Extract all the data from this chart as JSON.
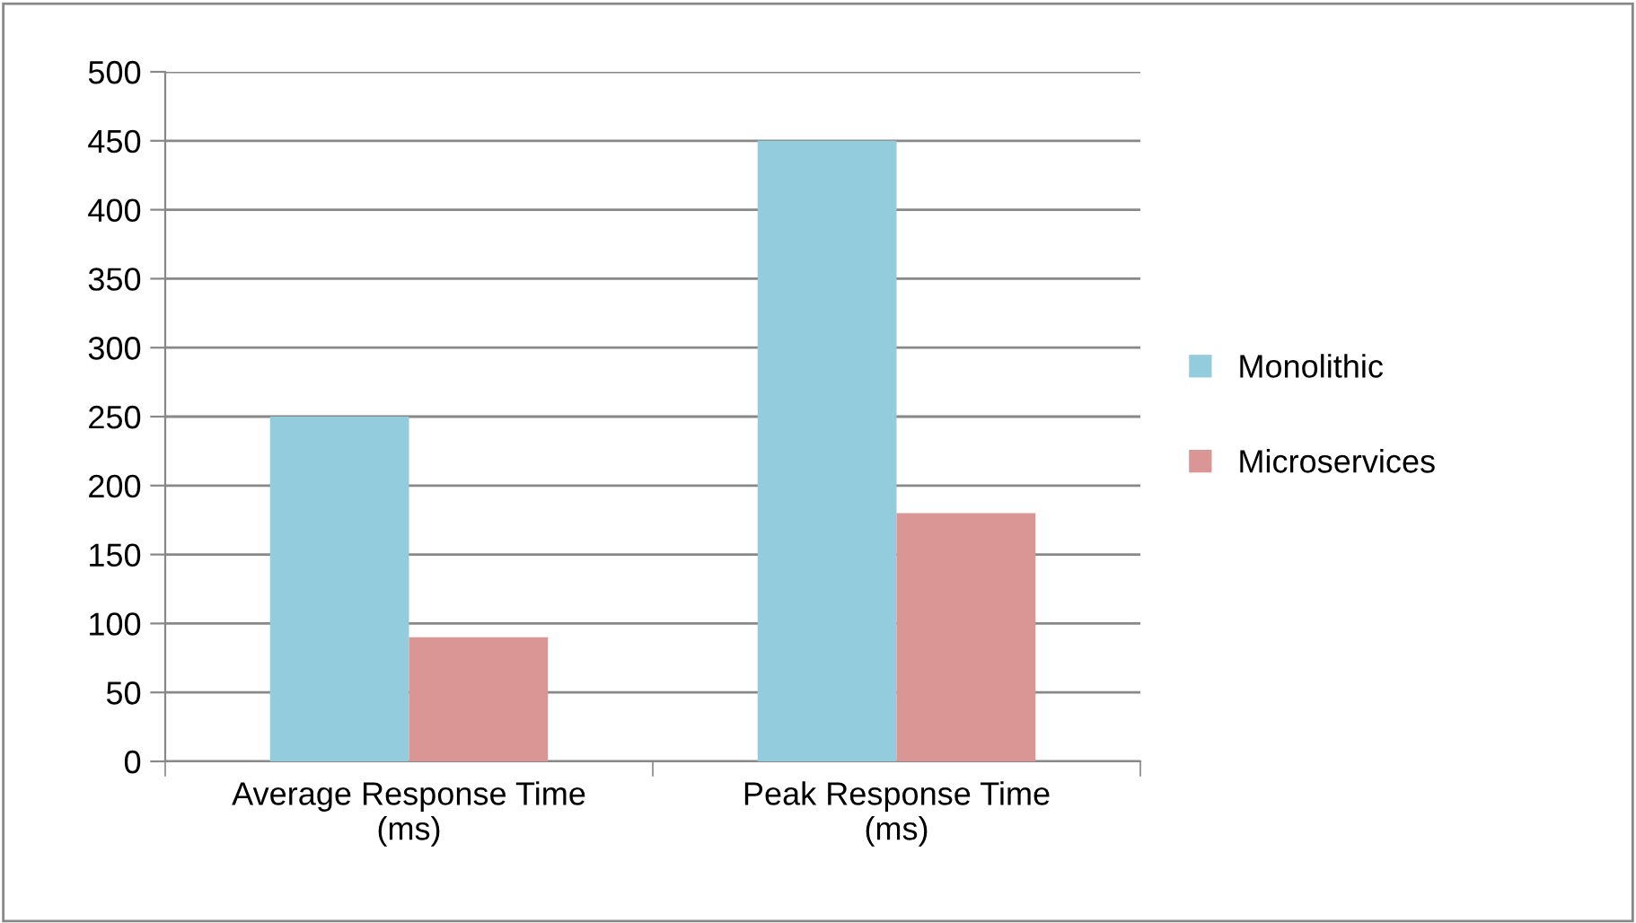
{
  "chart_data": {
    "type": "bar",
    "categories": [
      "Average Response Time\n(ms)",
      "Peak Response Time\n(ms)"
    ],
    "series": [
      {
        "name": "Monolithic",
        "color": "#93cddd",
        "values": [
          250,
          450
        ]
      },
      {
        "name": "Microservices",
        "color": "#d99694",
        "values": [
          90,
          180
        ]
      }
    ],
    "ylim": [
      0,
      500
    ],
    "yticks": [
      0,
      50,
      100,
      150,
      200,
      250,
      300,
      350,
      400,
      450,
      500
    ],
    "grid": "y",
    "legend": "right"
  }
}
